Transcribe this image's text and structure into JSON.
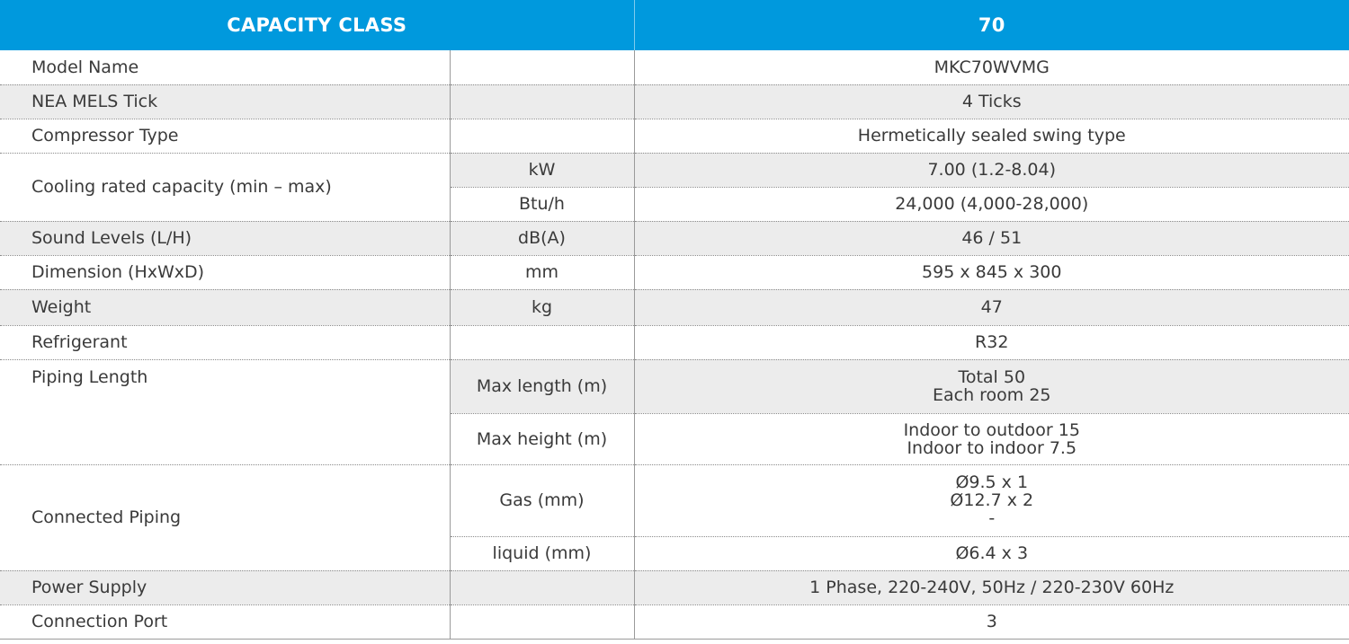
{
  "header": {
    "label": "CAPACITY CLASS",
    "value": "70"
  },
  "rows": {
    "model_name": {
      "label": "Model Name",
      "unit": "",
      "value": "MKC70WVMG"
    },
    "nea_mels": {
      "label": "NEA MELS Tick",
      "unit": "",
      "value": "4 Ticks"
    },
    "compressor": {
      "label": "Compressor Type",
      "unit": "",
      "value": "Hermetically sealed swing type"
    },
    "cooling": {
      "label": "Cooling rated capacity (min – max)",
      "kw_unit": "kW",
      "kw_value": "7.00 (1.2-8.04)",
      "btu_unit": "Btu/h",
      "btu_value": "24,000 (4,000-28,000)"
    },
    "sound": {
      "label": "Sound Levels (L/H)",
      "unit": "dB(A)",
      "value": "46 / 51"
    },
    "dimension": {
      "label": "Dimension (HxWxD)",
      "unit": "mm",
      "value": "595 x 845 x 300"
    },
    "weight": {
      "label": "Weight",
      "unit": "kg",
      "value": "47"
    },
    "refrigerant": {
      "label": "Refrigerant",
      "unit": "",
      "value": "R32"
    },
    "piping_length": {
      "label": "Piping Length",
      "max_length_unit": "Max length (m)",
      "max_length_lines": [
        "Total 50",
        "Each room 25"
      ],
      "max_height_unit": "Max height (m)",
      "max_height_lines": [
        "Indoor to outdoor 15",
        "Indoor to indoor 7.5"
      ]
    },
    "connected_piping": {
      "label": "Connected Piping",
      "gas_unit": "Gas (mm)",
      "gas_lines": [
        "Ø9.5 x 1",
        "Ø12.7 x 2",
        "-"
      ],
      "liquid_unit": "liquid (mm)",
      "liquid_value": "Ø6.4 x 3"
    },
    "power": {
      "label": "Power Supply",
      "unit": "",
      "value": "1 Phase, 220-240V, 50Hz / 220-230V 60Hz"
    },
    "port": {
      "label": "Connection Port",
      "unit": "",
      "value": "3"
    }
  },
  "colors": {
    "header_bg": "#0099dd",
    "shade": "#ececec",
    "text": "#3a3a3a"
  }
}
